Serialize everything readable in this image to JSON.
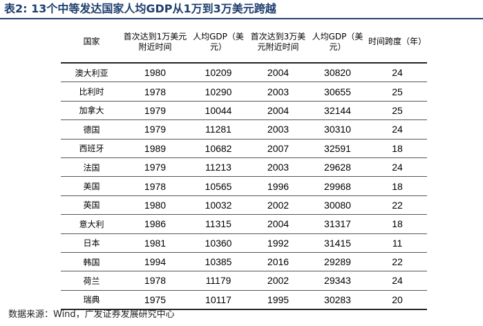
{
  "title": "表2: 13个中等发达国家人均GDP从1万到3万美元跨越",
  "table": {
    "headers": [
      "国家",
      "首次达到1万美元附近时间",
      "人均GDP（美元）",
      "首次达到3万美元附近时间",
      "人均GDP（美元）",
      "时间跨度（年）"
    ],
    "rows": [
      [
        "澳大利亚",
        "1980",
        "10209",
        "2004",
        "30820",
        "24"
      ],
      [
        "比利时",
        "1978",
        "10290",
        "2003",
        "30655",
        "25"
      ],
      [
        "加拿大",
        "1979",
        "10044",
        "2004",
        "32144",
        "25"
      ],
      [
        "德国",
        "1979",
        "11281",
        "2003",
        "30310",
        "24"
      ],
      [
        "西班牙",
        "1989",
        "10682",
        "2007",
        "32591",
        "18"
      ],
      [
        "法国",
        "1979",
        "11213",
        "2003",
        "29628",
        "24"
      ],
      [
        "美国",
        "1978",
        "10565",
        "1996",
        "29968",
        "18"
      ],
      [
        "英国",
        "1980",
        "10032",
        "2002",
        "30080",
        "22"
      ],
      [
        "意大利",
        "1986",
        "11315",
        "2004",
        "31317",
        "18"
      ],
      [
        "日本",
        "1981",
        "10360",
        "1992",
        "31415",
        "11"
      ],
      [
        "韩国",
        "1994",
        "10385",
        "2016",
        "29289",
        "22"
      ],
      [
        "荷兰",
        "1978",
        "11179",
        "2002",
        "29343",
        "24"
      ],
      [
        "瑞典",
        "1975",
        "10117",
        "1995",
        "30283",
        "20"
      ]
    ]
  },
  "source": "数据来源：Wind，广发证券发展研究中心",
  "colors": {
    "title": "#1f3f6e",
    "rule": "#1f3f6e"
  }
}
